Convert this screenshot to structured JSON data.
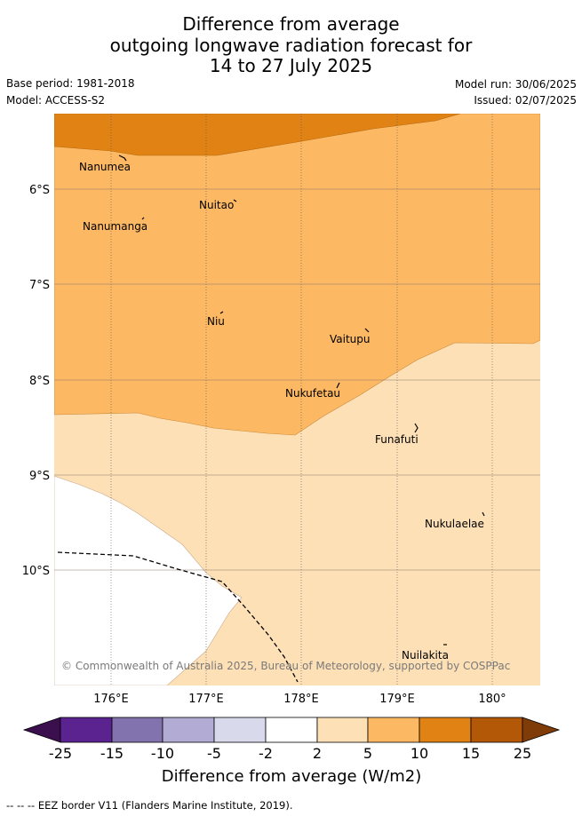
{
  "title": {
    "line1": "Difference from average",
    "line2": "outgoing longwave radiation forecast for",
    "line3": "14 to 27 July 2025"
  },
  "meta": {
    "base_period": "Base period: 1981-2018",
    "model": "Model: ACCESS-S2",
    "model_run": "Model run: 30/06/2025",
    "issued": "Issued: 02/07/2025"
  },
  "map": {
    "lon_ticks": [
      "176°E",
      "177°E",
      "178°E",
      "179°E",
      "180°"
    ],
    "lat_ticks": [
      "6°S",
      "7°S",
      "8°S",
      "9°S",
      "10°S"
    ],
    "places": [
      "Nanumea",
      "Nuitao",
      "Nanumanga",
      "Niu",
      "Vaitupu",
      "Nukufetau",
      "Funafuti",
      "Nukulaelae",
      "Nuilakita"
    ],
    "copyright": "© Commonwealth of Australia 2025, Bureau of Meteorology, supported by COSPPac"
  },
  "legend": {
    "tick_labels": [
      "-25",
      "-15",
      "-10",
      "-5",
      "-2",
      "2",
      "5",
      "10",
      "15",
      "25"
    ],
    "colors": [
      "#3b0f4e",
      "#5a2390",
      "#8272ae",
      "#b2acd4",
      "#d9d9ec",
      "#ffffff",
      "#fee0b6",
      "#fdb863",
      "#e08214",
      "#b35806",
      "#7f3b08"
    ],
    "title": "Difference from average (W/m2)"
  },
  "footer": {
    "eez_note": "-- -- -- EEZ border V11 (Flanders Marine Institute, 2019)."
  }
}
